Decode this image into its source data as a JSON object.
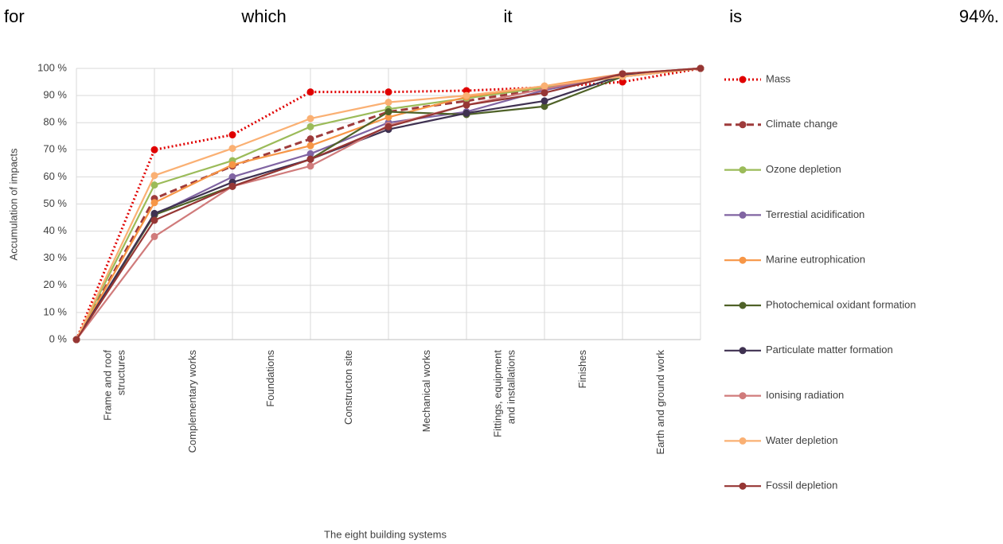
{
  "top_text": "for which it is 94%.",
  "chart_data": {
    "type": "line",
    "ylabel": "Accumulation of impacts",
    "xlabel": "The eight building systems",
    "categories": [
      null,
      "Frame and roof\nstructures",
      "Complementary works",
      "Foundations",
      "Constructon site",
      "Mechanical works",
      "Fittings, equipment\nand installations",
      "Finishes",
      "Earth and ground work"
    ],
    "ylim": [
      0,
      100
    ],
    "yticks": [
      {
        "value": 0,
        "label": "0 %"
      },
      {
        "value": 10,
        "label": "10 %"
      },
      {
        "value": 20,
        "label": "20 %"
      },
      {
        "value": 30,
        "label": "30 %"
      },
      {
        "value": 40,
        "label": "40 %"
      },
      {
        "value": 50,
        "label": "50 %"
      },
      {
        "value": 60,
        "label": "60 %"
      },
      {
        "value": 70,
        "label": "70 %"
      },
      {
        "value": 80,
        "label": "80 %"
      },
      {
        "value": 90,
        "label": "90 %"
      },
      {
        "value": 100,
        "label": "100 %"
      }
    ],
    "grid": true,
    "legend": "right",
    "series": [
      {
        "name": "Mass",
        "color": "#e00000",
        "style": "dotted",
        "values": [
          0,
          70,
          75.5,
          91.3,
          91.3,
          91.8,
          93,
          95,
          100
        ]
      },
      {
        "name": "Climate change",
        "color": "#9e3b3b",
        "style": "dashed",
        "values": [
          0,
          52,
          64,
          74,
          84,
          88,
          92.5,
          97.5,
          100
        ]
      },
      {
        "name": "Ozone depletion",
        "color": "#9bbb59",
        "style": "solid",
        "values": [
          0,
          57,
          66,
          78.5,
          85,
          89,
          93,
          97,
          100
        ]
      },
      {
        "name": "Terrestial acidification",
        "color": "#8064a2",
        "style": "solid",
        "values": [
          0,
          46,
          60,
          68.5,
          80,
          84,
          92,
          97.5,
          100
        ]
      },
      {
        "name": "Marine eutrophication",
        "color": "#f79646",
        "style": "solid",
        "values": [
          0,
          50.5,
          64.5,
          71.5,
          82,
          89.5,
          93.5,
          98,
          100
        ]
      },
      {
        "name": "Photochemical oxidant formation",
        "color": "#4f6228",
        "style": "solid",
        "values": [
          0,
          46,
          56.5,
          66.5,
          84,
          83,
          86,
          97,
          100
        ]
      },
      {
        "name": "Particulate matter formation",
        "color": "#3f3151",
        "style": "solid",
        "values": [
          0,
          46.5,
          58,
          66.5,
          77.5,
          83.5,
          88,
          97.5,
          100
        ]
      },
      {
        "name": "Ionising radiation",
        "color": "#d07b7b",
        "style": "solid",
        "values": [
          0,
          38,
          56.5,
          64,
          79,
          86.5,
          92.5,
          98,
          100
        ]
      },
      {
        "name": "Water depletion",
        "color": "#fab073",
        "style": "solid",
        "values": [
          0,
          60.5,
          70.5,
          81.5,
          87.5,
          90,
          93.5,
          97,
          100
        ]
      },
      {
        "name": "Fossil depletion",
        "color": "#963634",
        "style": "solid",
        "values": [
          0,
          44,
          56.5,
          66.5,
          78.5,
          86.5,
          91,
          98,
          100
        ]
      }
    ]
  }
}
